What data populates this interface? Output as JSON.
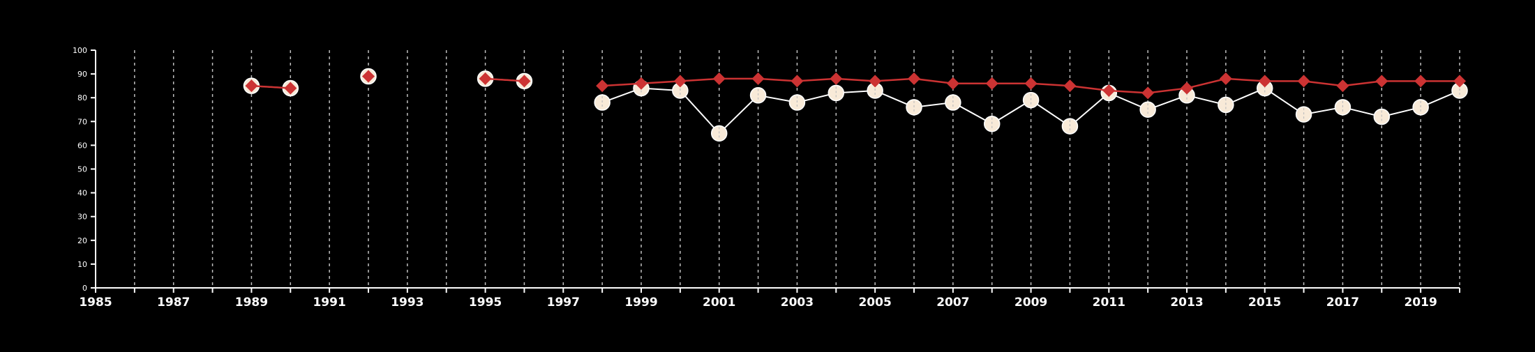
{
  "colors": {
    "background": "#000000",
    "axis": "#ffffff",
    "grid": "#bfbfbf",
    "series_a_line": "#ffffff",
    "series_a_marker": "#f8ead8",
    "series_b": "#cc3333"
  },
  "chart_data": {
    "type": "line",
    "title": "",
    "xlabel": "",
    "ylabel": "",
    "xlim": [
      1985,
      2020
    ],
    "ylim": [
      0,
      100
    ],
    "x_ticks": [
      1985,
      1986,
      1987,
      1988,
      1989,
      1990,
      1991,
      1992,
      1993,
      1994,
      1995,
      1996,
      1997,
      1998,
      1999,
      2000,
      2001,
      2002,
      2003,
      2004,
      2005,
      2006,
      2007,
      2008,
      2009,
      2010,
      2011,
      2012,
      2013,
      2014,
      2015,
      2016,
      2017,
      2018,
      2019,
      2020
    ],
    "x_tick_labels": [
      "1985",
      "1987",
      "1989",
      "1991",
      "1993",
      "1995",
      "1997",
      "1999",
      "2001",
      "2003",
      "2005",
      "2007",
      "2009",
      "2011",
      "2013",
      "2015",
      "2017",
      "2019"
    ],
    "y_ticks": [
      0,
      10,
      20,
      30,
      40,
      50,
      60,
      70,
      80,
      90,
      100
    ],
    "grid": "vertical dashed at each year",
    "legend": "none",
    "series": [
      {
        "marker": "circle",
        "points": [
          [
            1989,
            85
          ],
          [
            1990,
            84
          ],
          [
            1992,
            89
          ],
          [
            1995,
            88
          ],
          [
            1996,
            87
          ],
          [
            1998,
            78
          ],
          [
            1999,
            84
          ],
          [
            2000,
            83
          ],
          [
            2001,
            65
          ],
          [
            2002,
            81
          ],
          [
            2003,
            78
          ],
          [
            2004,
            82
          ],
          [
            2005,
            83
          ],
          [
            2006,
            76
          ],
          [
            2007,
            78
          ],
          [
            2008,
            69
          ],
          [
            2009,
            79
          ],
          [
            2010,
            68
          ],
          [
            2011,
            82
          ],
          [
            2012,
            75
          ],
          [
            2013,
            81
          ],
          [
            2014,
            77
          ],
          [
            2015,
            84
          ],
          [
            2016,
            73
          ],
          [
            2017,
            76
          ],
          [
            2018,
            72
          ],
          [
            2019,
            76
          ],
          [
            2020,
            83
          ]
        ]
      },
      {
        "marker": "diamond",
        "points": [
          [
            1989,
            85
          ],
          [
            1990,
            84
          ],
          [
            1992,
            89
          ],
          [
            1995,
            88
          ],
          [
            1996,
            87
          ],
          [
            1998,
            85
          ],
          [
            1999,
            86
          ],
          [
            2000,
            87
          ],
          [
            2001,
            88
          ],
          [
            2002,
            88
          ],
          [
            2003,
            87
          ],
          [
            2004,
            88
          ],
          [
            2005,
            87
          ],
          [
            2006,
            88
          ],
          [
            2007,
            86
          ],
          [
            2008,
            86
          ],
          [
            2009,
            86
          ],
          [
            2010,
            85
          ],
          [
            2011,
            83
          ],
          [
            2012,
            82
          ],
          [
            2013,
            84
          ],
          [
            2014,
            88
          ],
          [
            2015,
            87
          ],
          [
            2016,
            87
          ],
          [
            2017,
            85
          ],
          [
            2018,
            87
          ],
          [
            2019,
            87
          ],
          [
            2020,
            87
          ]
        ]
      }
    ]
  }
}
